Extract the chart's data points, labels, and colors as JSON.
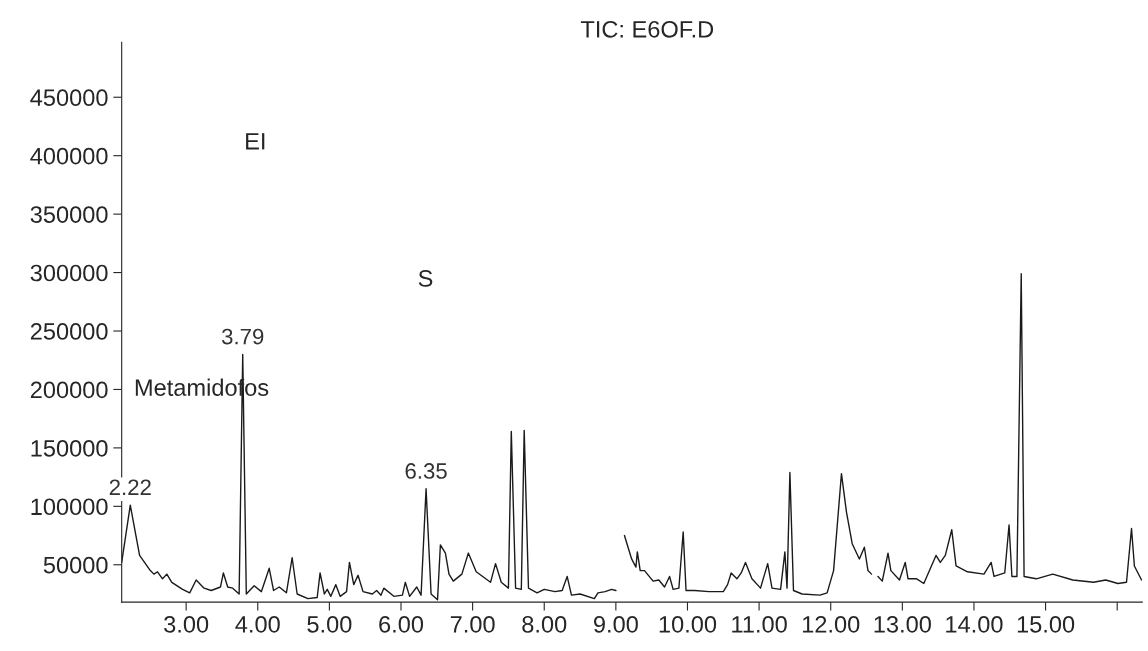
{
  "chart_data": {
    "type": "line",
    "title": "TIC: E6OF.D",
    "x": [
      2.1,
      2.22,
      2.35,
      2.5,
      2.55,
      2.6,
      2.67,
      2.73,
      2.8,
      2.95,
      3.05,
      3.14,
      3.25,
      3.35,
      3.48,
      3.52,
      3.58,
      3.65,
      3.74,
      3.79,
      3.84,
      3.95,
      4.05,
      4.16,
      4.22,
      4.3,
      4.4,
      4.48,
      4.55,
      4.7,
      4.83,
      4.87,
      4.93,
      4.97,
      5.02,
      5.09,
      5.15,
      5.24,
      5.28,
      5.34,
      5.4,
      5.47,
      5.6,
      5.66,
      5.72,
      5.76,
      5.9,
      6.02,
      6.06,
      6.12,
      6.22,
      6.28,
      6.35,
      6.42,
      6.51,
      6.55,
      6.62,
      6.67,
      6.73,
      6.85,
      6.94,
      7.05,
      7.25,
      7.32,
      7.4,
      7.5,
      7.54,
      7.6,
      7.68,
      7.72,
      7.78,
      7.9,
      8.0,
      8.15,
      8.25,
      8.32,
      8.38,
      8.5,
      8.7,
      8.75,
      8.85,
      8.94,
      9.0,
      9.03,
      9.09,
      9.12,
      9.22,
      9.28,
      9.3,
      9.34,
      9.4,
      9.52,
      9.6,
      9.68,
      9.75,
      9.8,
      9.88,
      9.94,
      9.98,
      10.1,
      10.3,
      10.5,
      10.56,
      10.61,
      10.69,
      10.75,
      10.81,
      10.9,
      11.02,
      11.12,
      11.18,
      11.3,
      11.36,
      11.39,
      11.43,
      11.48,
      11.6,
      11.85,
      11.95,
      12.04,
      12.15,
      12.22,
      12.3,
      12.4,
      12.47,
      12.52,
      12.57,
      12.62,
      12.66,
      12.72,
      12.8,
      12.84,
      12.96,
      13.04,
      13.08,
      13.2,
      13.3,
      13.47,
      13.53,
      13.6,
      13.69,
      13.75,
      13.91,
      14.14,
      14.24,
      14.28,
      14.43,
      14.49,
      14.53,
      14.6,
      14.66,
      14.7,
      14.87,
      15.1,
      15.38,
      15.67,
      15.84,
      16.01,
      16.13,
      16.2,
      16.24,
      16.34
    ],
    "series": [
      {
        "color": "#1a1a1a",
        "values": [
          52000,
          101000,
          58000,
          45000,
          42000,
          44000,
          38000,
          42000,
          35000,
          29000,
          26000,
          37000,
          30000,
          28000,
          31000,
          43000,
          31000,
          30000,
          25000,
          230000,
          25000,
          32000,
          27000,
          47000,
          28000,
          31000,
          26000,
          56000,
          25000,
          21000,
          22000,
          43000,
          25000,
          29000,
          23000,
          33000,
          23000,
          27000,
          52000,
          33000,
          41000,
          27000,
          25000,
          28000,
          24000,
          30000,
          23000,
          24000,
          35000,
          23000,
          31000,
          24000,
          115000,
          25000,
          20000,
          67000,
          60000,
          42000,
          36000,
          42000,
          60000,
          44000,
          35000,
          51000,
          35000,
          30000,
          164000,
          30000,
          29000,
          165000,
          30000,
          26000,
          29000,
          27000,
          28000,
          40000,
          24000,
          25000,
          21000,
          26000,
          27000,
          29000,
          28000,
          null,
          null,
          75000,
          55000,
          48000,
          61000,
          45000,
          45000,
          36000,
          37000,
          31000,
          40000,
          29000,
          30000,
          78000,
          28000,
          28000,
          27000,
          27000,
          33000,
          43000,
          38000,
          43000,
          52000,
          38000,
          30000,
          51000,
          30000,
          29000,
          61000,
          30000,
          129000,
          28000,
          25000,
          24000,
          26000,
          45000,
          128000,
          95000,
          68000,
          55000,
          65000,
          45000,
          42000,
          null,
          40000,
          36000,
          60000,
          45000,
          37000,
          52000,
          38000,
          38000,
          34000,
          58000,
          52000,
          58000,
          80000,
          49000,
          44000,
          42000,
          52000,
          40000,
          43000,
          84000,
          40000,
          40000,
          299000,
          40000,
          38000,
          42000,
          37000,
          35000,
          37000,
          34000,
          35000,
          81000,
          49000,
          37000
        ]
      }
    ],
    "xlim": [
      2.1,
      16.35
    ],
    "ylim": [
      18000,
      497000
    ],
    "xticks": [
      {
        "value": 3,
        "label": "3.00"
      },
      {
        "value": 4,
        "label": "4.00"
      },
      {
        "value": 5,
        "label": "5.00"
      },
      {
        "value": 6,
        "label": "6.00"
      },
      {
        "value": 7,
        "label": "7.00"
      },
      {
        "value": 8,
        "label": "8.00"
      },
      {
        "value": 9,
        "label": "9.00"
      },
      {
        "value": 10,
        "label": "10.00"
      },
      {
        "value": 11,
        "label": "11.00"
      },
      {
        "value": 12,
        "label": "12.00"
      },
      {
        "value": 13,
        "label": "13.00"
      },
      {
        "value": 14,
        "label": "14.00"
      },
      {
        "value": 15,
        "label": "15.00"
      },
      {
        "value": 16,
        "label": null
      }
    ],
    "yticks": [
      50000,
      100000,
      150000,
      200000,
      250000,
      300000,
      350000,
      400000,
      450000
    ],
    "annotations": [
      {
        "text": "2.22",
        "x": 2.22,
        "y": 101000
      },
      {
        "text": "3.79",
        "x": 3.79,
        "y": 230000
      },
      {
        "text": "6.35",
        "x": 6.35,
        "y": 115000
      },
      "Metamidofos",
      "EI",
      "S"
    ],
    "grid": false,
    "legend": false
  }
}
